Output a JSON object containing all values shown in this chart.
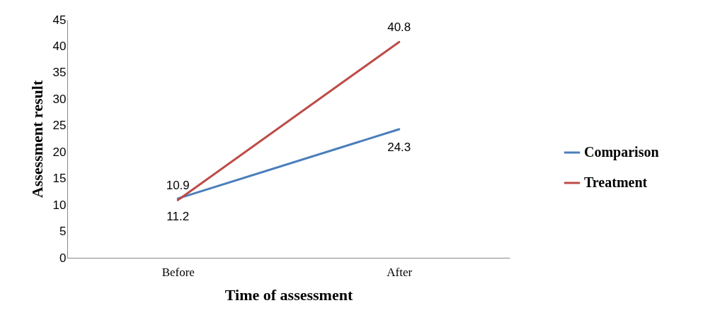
{
  "chart_data": {
    "type": "line",
    "xlabel": "Time of assessment",
    "ylabel": "Assessment result",
    "categories": [
      "Before",
      "After"
    ],
    "series": [
      {
        "name": "Comparison",
        "color": "#4a7ebb",
        "values": [
          11.2,
          24.3
        ]
      },
      {
        "name": "Treatment",
        "color": "#be4b48",
        "values": [
          10.9,
          40.8
        ]
      }
    ],
    "ylim": [
      0,
      45
    ],
    "yticks": [
      0,
      5,
      10,
      15,
      20,
      25,
      30,
      35,
      40,
      45
    ],
    "data_labels": true,
    "legend": "right",
    "grid": false
  }
}
